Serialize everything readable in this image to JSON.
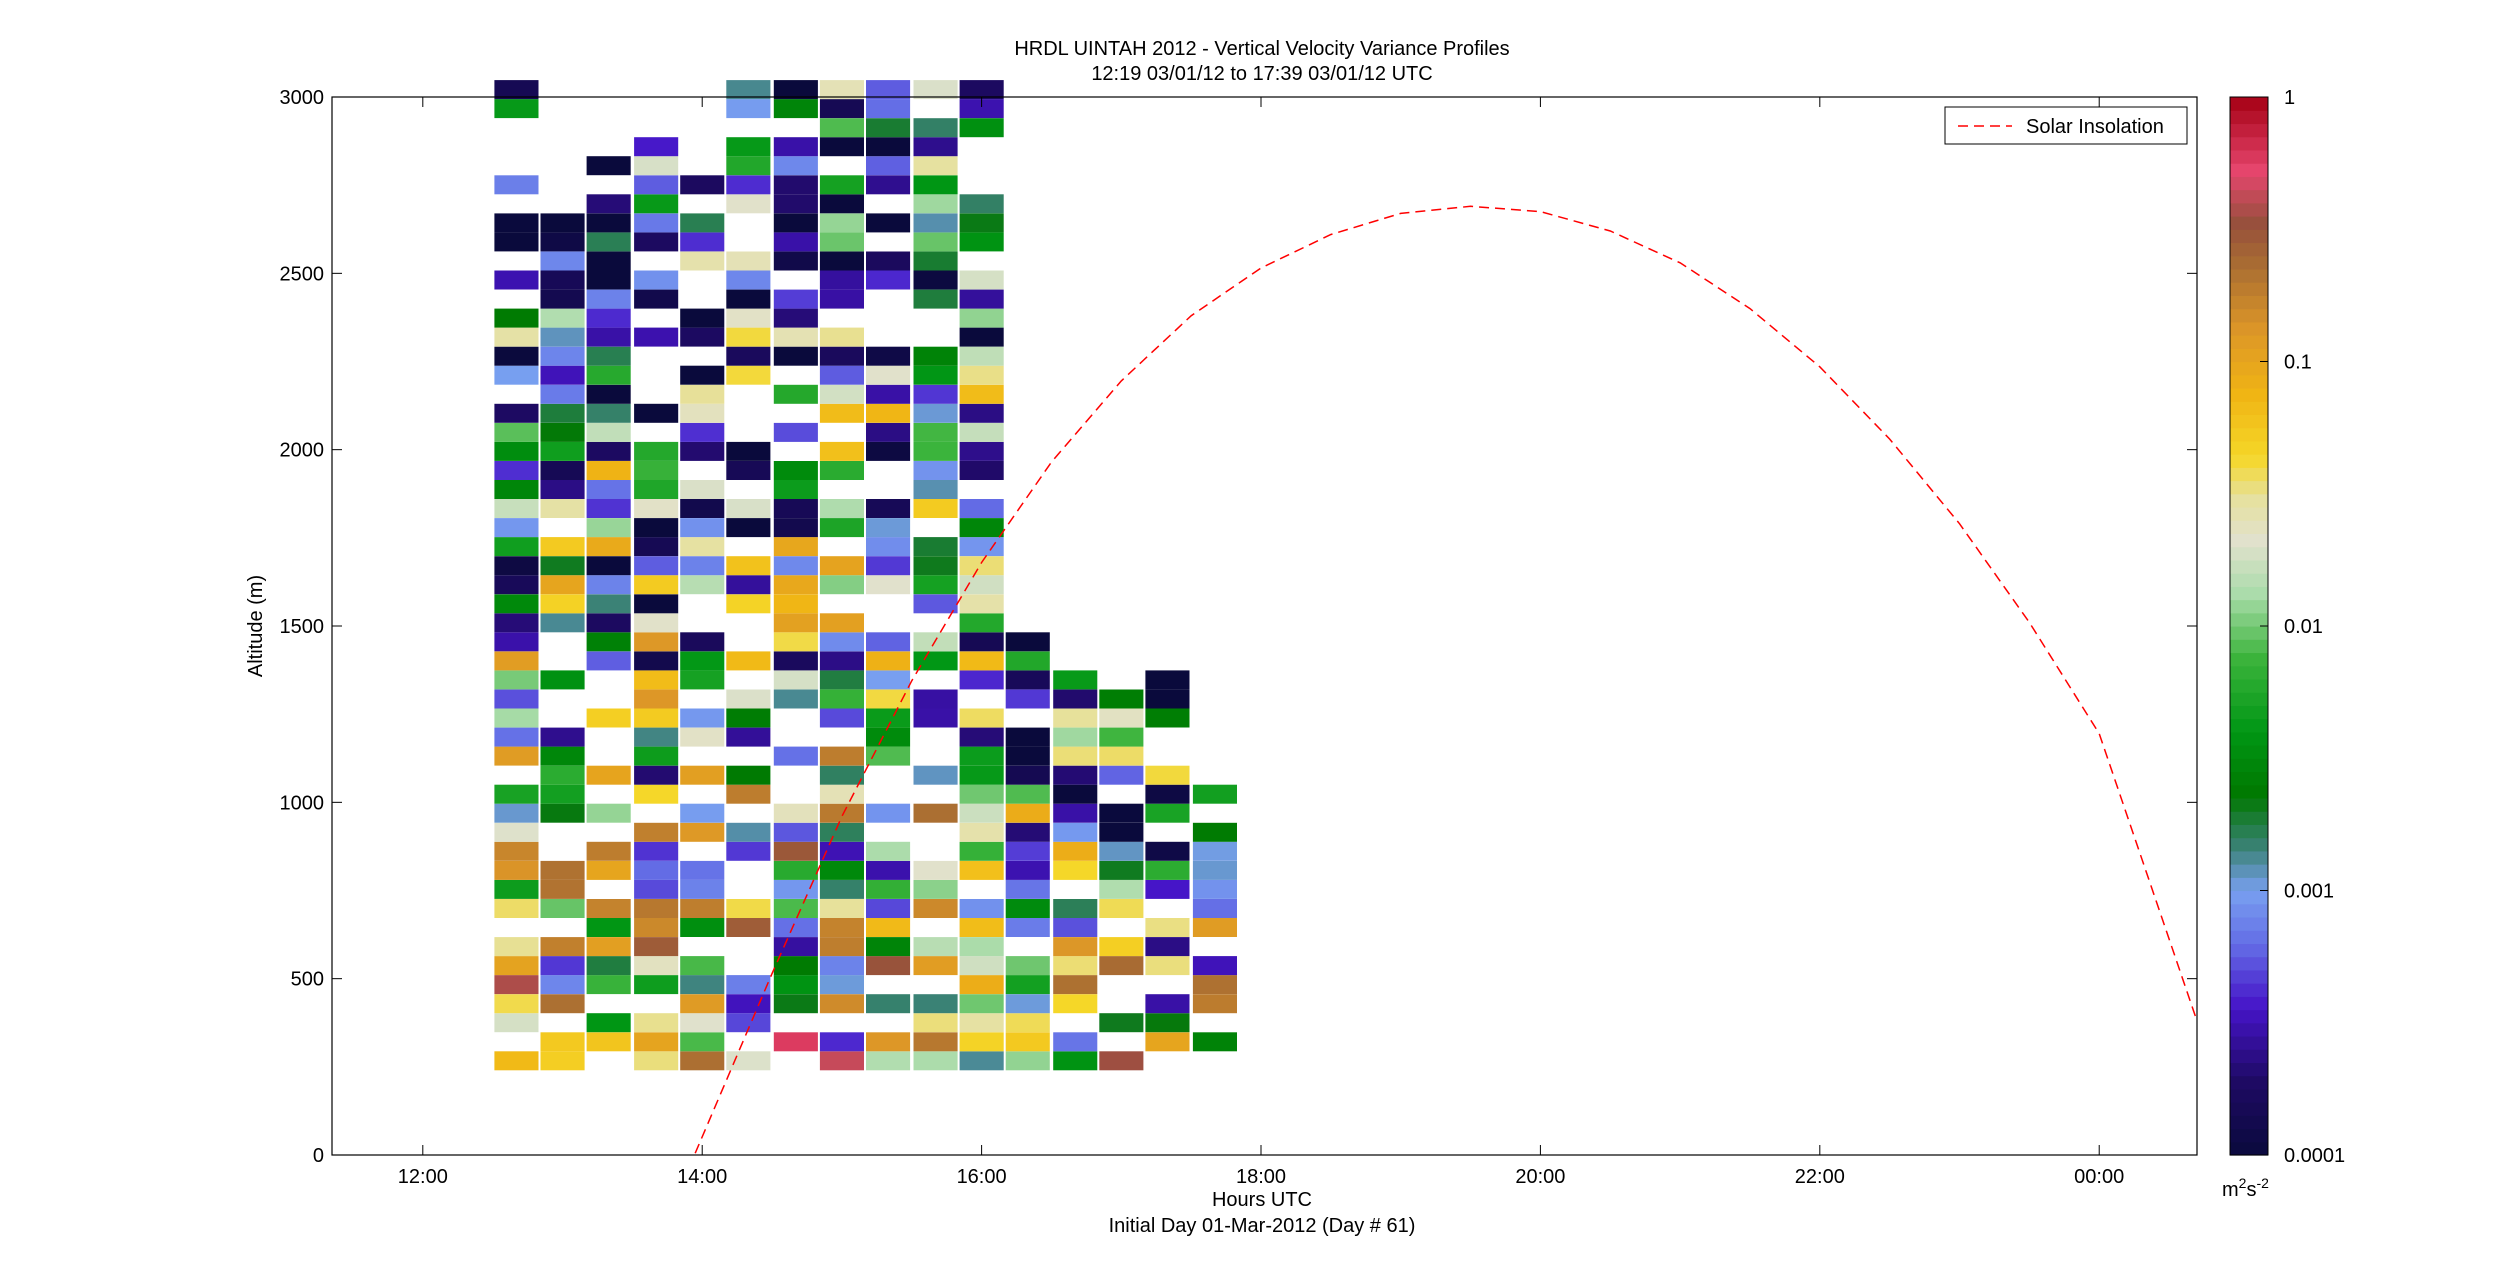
{
  "chart_data": {
    "type": "heatmap",
    "title": "HRDL UINTAH 2012 - Vertical Velocity Variance Profiles",
    "subtitle": "12:19 03/01/12 to 17:39 03/01/12  UTC",
    "xlabel": "Hours UTC",
    "xlabel2": "Initial Day 01-Mar-2012 (Day # 61)",
    "ylabel": "Altitude (m)",
    "x_unit": "hours UTC (continuous from 00:00 of 01-Mar-2012)",
    "xlim": [
      11.35,
      24.7
    ],
    "ylim": [
      0,
      3000
    ],
    "x_ticks": [
      12,
      14,
      16,
      18,
      20,
      22,
      24
    ],
    "x_tick_labels": [
      "12:00",
      "14:00",
      "16:00",
      "18:00",
      "20:00",
      "22:00",
      "00:00"
    ],
    "y_ticks": [
      0,
      500,
      1000,
      1500,
      2000,
      2500,
      3000
    ],
    "y_tick_labels": [
      "0",
      "500",
      "1000",
      "1500",
      "2000",
      "2500",
      "3000"
    ],
    "colorbar": {
      "scale": "log",
      "range": [
        0.0001,
        1
      ],
      "tick_values": [
        0.0001,
        0.001,
        0.01,
        0.1,
        1
      ],
      "tick_labels": [
        "0.0001",
        "0.001",
        "0.01",
        "0.1",
        "1"
      ],
      "unit_label_base": "m",
      "unit_sup1": "2",
      "unit_mid": "s",
      "unit_sup2": "-2"
    },
    "legend": {
      "position": "top-right",
      "entries": [
        "Solar Insolation"
      ]
    },
    "series": [
      {
        "name": "Solar Insolation",
        "style": "dashed",
        "color": "#ff0000",
        "x": [
          13.95,
          14.5,
          15.0,
          15.5,
          16.0,
          16.5,
          17.0,
          17.5,
          18.0,
          18.5,
          19.0,
          19.5,
          20.0,
          20.5,
          21.0,
          21.5,
          22.0,
          22.5,
          23.0,
          23.5,
          24.0,
          24.7
        ],
        "y": [
          5,
          515,
          960,
          1345,
          1680,
          1965,
          2195,
          2380,
          2515,
          2610,
          2670,
          2690,
          2675,
          2620,
          2530,
          2400,
          2235,
          2030,
          1790,
          1510,
          1195,
          380
        ]
      }
    ],
    "profile_times": [
      12.67,
      13.0,
      13.33,
      13.67,
      14.0,
      14.33,
      14.67,
      15.0,
      15.33,
      15.67,
      16.0,
      16.33,
      16.67,
      17.0,
      17.33,
      17.67
    ],
    "profile_alt_ranges": [
      [
        240,
        3000
      ],
      [
        240,
        2620
      ],
      [
        240,
        2820
      ],
      [
        240,
        2860
      ],
      [
        240,
        2750
      ],
      [
        240,
        3000
      ],
      [
        240,
        3000
      ],
      [
        240,
        3000
      ],
      [
        240,
        3000
      ],
      [
        240,
        3000
      ],
      [
        240,
        3000
      ],
      [
        240,
        1490
      ],
      [
        240,
        1370
      ],
      [
        240,
        1310
      ],
      [
        240,
        1340
      ],
      [
        240,
        1120
      ]
    ],
    "variance_range_note": "cell colors encode vertical velocity variance (m2 s-2) on the log colorbar; values vary between 0.0001 and 1 across profiles"
  }
}
